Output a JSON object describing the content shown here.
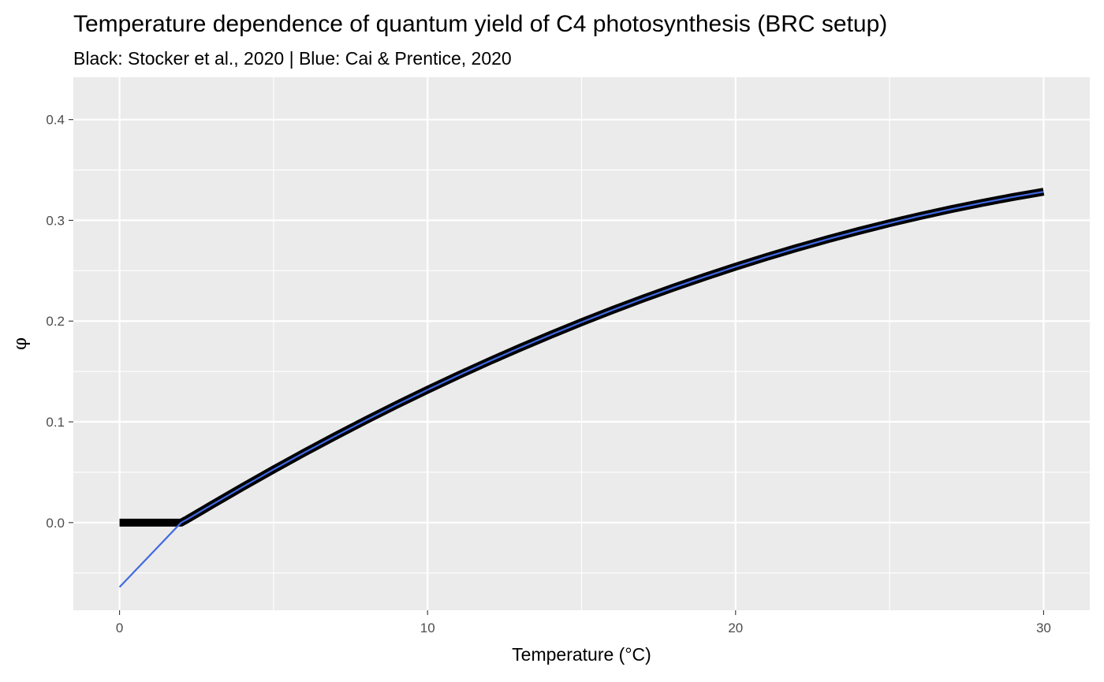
{
  "chart_data": {
    "type": "line",
    "title": "Temperature dependence of quantum yield of C4 photosynthesis (BRC setup)",
    "subtitle": "Black: Stocker et al., 2020 | Blue: Cai & Prentice, 2020",
    "xlabel": "Temperature (°C)",
    "ylabel": "φ",
    "xlim": [
      -1.5,
      31.5
    ],
    "ylim": [
      -0.087,
      0.442
    ],
    "x_ticks": [
      0,
      10,
      20,
      30
    ],
    "x_tick_labels": [
      "0",
      "10",
      "20",
      "30"
    ],
    "y_ticks": [
      0.0,
      0.1,
      0.2,
      0.3,
      0.4
    ],
    "y_tick_labels": [
      "0.0",
      "0.1",
      "0.2",
      "0.3",
      "0.4"
    ],
    "grid": true,
    "background": "#ebebeb",
    "series": [
      {
        "color": "#000000",
        "style": "thick",
        "x": [
          0,
          1,
          2,
          2.2,
          3,
          4,
          5,
          6,
          7,
          8,
          9,
          10,
          11,
          12,
          13,
          14,
          15,
          16,
          17,
          18,
          19,
          20,
          21,
          22,
          23,
          24,
          25,
          26,
          27,
          28,
          29,
          30
        ],
        "y": [
          0.0,
          0.0,
          0.0,
          0.0033,
          0.0177,
          0.0354,
          0.0527,
          0.0695,
          0.0858,
          0.1016,
          0.117,
          0.1318,
          0.1462,
          0.1601,
          0.1735,
          0.1864,
          0.1989,
          0.2109,
          0.2224,
          0.2334,
          0.2439,
          0.254,
          0.2636,
          0.2727,
          0.2813,
          0.2895,
          0.2972,
          0.3044,
          0.3111,
          0.3173,
          0.3231,
          0.3284
        ]
      },
      {
        "color": "#4169e1",
        "style": "thin",
        "x": [
          0,
          1,
          2,
          2.2,
          3,
          4,
          5,
          6,
          7,
          8,
          9,
          10,
          11,
          12,
          13,
          14,
          15,
          16,
          17,
          18,
          19,
          20,
          21,
          22,
          23,
          24,
          25,
          26,
          27,
          28,
          29,
          30
        ],
        "y": [
          -0.064,
          -0.032,
          0.0,
          0.0033,
          0.0177,
          0.0354,
          0.0527,
          0.0695,
          0.0858,
          0.1016,
          0.117,
          0.1318,
          0.1462,
          0.1601,
          0.1735,
          0.1864,
          0.1989,
          0.2109,
          0.2224,
          0.2334,
          0.2439,
          0.254,
          0.2636,
          0.2727,
          0.2813,
          0.2895,
          0.2972,
          0.3044,
          0.3111,
          0.3173,
          0.3231,
          0.3284
        ]
      }
    ]
  }
}
